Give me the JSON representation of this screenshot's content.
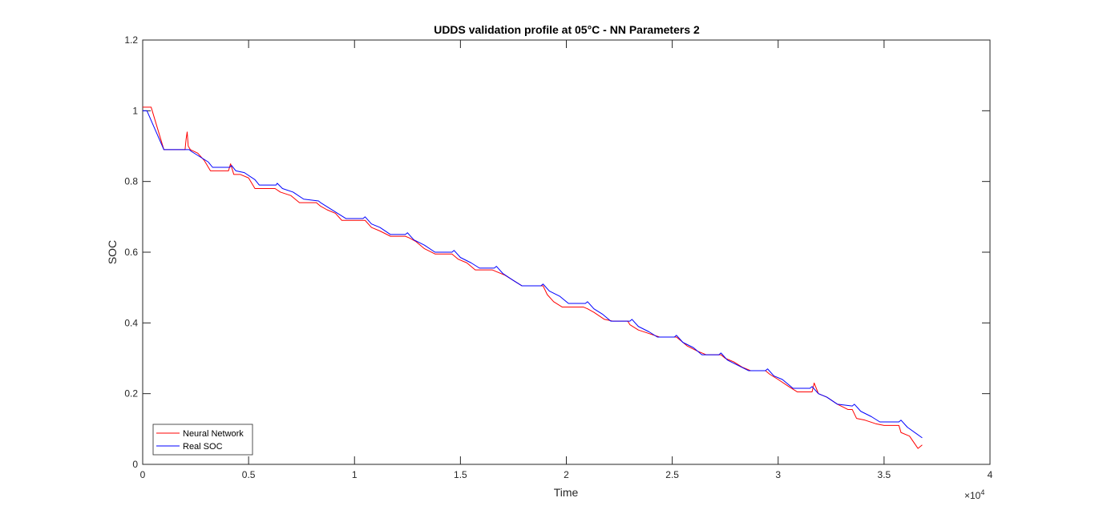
{
  "chart_data": {
    "type": "line",
    "title": "UDDS validation profile at 05°C - NN Parameters 2",
    "xlabel": "Time",
    "ylabel": "SOC",
    "x_exponent_base": "×10",
    "x_exponent_power": "4",
    "xlim": [
      0,
      40000
    ],
    "ylim": [
      0,
      1.2
    ],
    "xticks": [
      0,
      5000,
      10000,
      15000,
      20000,
      25000,
      30000,
      35000,
      40000
    ],
    "xtick_labels": [
      "0",
      "0.5",
      "1",
      "1.5",
      "2",
      "2.5",
      "3",
      "3.5",
      "4"
    ],
    "yticks": [
      0,
      0.2,
      0.4,
      0.6,
      0.8,
      1.0,
      1.2
    ],
    "ytick_labels": [
      "0",
      "0.2",
      "0.4",
      "0.6",
      "0.8",
      "1",
      "1.2"
    ],
    "grid": false,
    "legend_position": "bottom-left",
    "series": [
      {
        "name": "Neural Network",
        "color": "#ff0000",
        "points": [
          [
            0,
            1.01
          ],
          [
            400,
            1.01
          ],
          [
            1000,
            0.89
          ],
          [
            2000,
            0.89
          ],
          [
            2050,
            0.92
          ],
          [
            2100,
            0.94
          ],
          [
            2150,
            0.9
          ],
          [
            2250,
            0.89
          ],
          [
            2600,
            0.88
          ],
          [
            2900,
            0.86
          ],
          [
            3200,
            0.83
          ],
          [
            4050,
            0.83
          ],
          [
            4150,
            0.85
          ],
          [
            4300,
            0.82
          ],
          [
            4600,
            0.82
          ],
          [
            5000,
            0.81
          ],
          [
            5300,
            0.78
          ],
          [
            6100,
            0.78
          ],
          [
            6250,
            0.78
          ],
          [
            6500,
            0.77
          ],
          [
            7000,
            0.76
          ],
          [
            7400,
            0.74
          ],
          [
            8200,
            0.74
          ],
          [
            8400,
            0.73
          ],
          [
            8700,
            0.72
          ],
          [
            9100,
            0.71
          ],
          [
            9400,
            0.69
          ],
          [
            10300,
            0.69
          ],
          [
            10500,
            0.69
          ],
          [
            10800,
            0.67
          ],
          [
            11200,
            0.66
          ],
          [
            11700,
            0.645
          ],
          [
            12400,
            0.645
          ],
          [
            12600,
            0.64
          ],
          [
            12900,
            0.63
          ],
          [
            13300,
            0.61
          ],
          [
            13800,
            0.595
          ],
          [
            14600,
            0.595
          ],
          [
            14900,
            0.58
          ],
          [
            15300,
            0.57
          ],
          [
            15700,
            0.55
          ],
          [
            16500,
            0.55
          ],
          [
            16700,
            0.545
          ],
          [
            17100,
            0.535
          ],
          [
            17500,
            0.52
          ],
          [
            17900,
            0.505
          ],
          [
            18900,
            0.505
          ],
          [
            19100,
            0.48
          ],
          [
            19400,
            0.46
          ],
          [
            19800,
            0.445
          ],
          [
            20800,
            0.445
          ],
          [
            21000,
            0.44
          ],
          [
            21300,
            0.43
          ],
          [
            21800,
            0.41
          ],
          [
            22200,
            0.405
          ],
          [
            22900,
            0.405
          ],
          [
            23000,
            0.395
          ],
          [
            23400,
            0.38
          ],
          [
            23900,
            0.37
          ],
          [
            24400,
            0.36
          ],
          [
            25200,
            0.36
          ],
          [
            25400,
            0.35
          ],
          [
            25700,
            0.335
          ],
          [
            26200,
            0.32
          ],
          [
            26600,
            0.31
          ],
          [
            27300,
            0.31
          ],
          [
            27500,
            0.3
          ],
          [
            27900,
            0.29
          ],
          [
            28300,
            0.275
          ],
          [
            28700,
            0.265
          ],
          [
            29400,
            0.265
          ],
          [
            29600,
            0.255
          ],
          [
            30000,
            0.24
          ],
          [
            30500,
            0.22
          ],
          [
            30900,
            0.205
          ],
          [
            31600,
            0.205
          ],
          [
            31700,
            0.23
          ],
          [
            31900,
            0.2
          ],
          [
            32300,
            0.19
          ],
          [
            32800,
            0.17
          ],
          [
            33300,
            0.155
          ],
          [
            33500,
            0.155
          ],
          [
            33700,
            0.13
          ],
          [
            34100,
            0.125
          ],
          [
            34600,
            0.115
          ],
          [
            35000,
            0.11
          ],
          [
            35700,
            0.11
          ],
          [
            35800,
            0.09
          ],
          [
            36200,
            0.08
          ],
          [
            36600,
            0.045
          ],
          [
            36800,
            0.055
          ]
        ]
      },
      {
        "name": "Real SOC",
        "color": "#0000ff",
        "points": [
          [
            0,
            1.0
          ],
          [
            200,
            1.0
          ],
          [
            1000,
            0.89
          ],
          [
            2200,
            0.89
          ],
          [
            2300,
            0.885
          ],
          [
            2700,
            0.87
          ],
          [
            3100,
            0.855
          ],
          [
            3300,
            0.84
          ],
          [
            4100,
            0.84
          ],
          [
            4200,
            0.845
          ],
          [
            4400,
            0.83
          ],
          [
            4800,
            0.825
          ],
          [
            5300,
            0.805
          ],
          [
            5500,
            0.79
          ],
          [
            6300,
            0.79
          ],
          [
            6350,
            0.795
          ],
          [
            6600,
            0.78
          ],
          [
            7100,
            0.77
          ],
          [
            7600,
            0.75
          ],
          [
            8300,
            0.745
          ],
          [
            8400,
            0.74
          ],
          [
            8800,
            0.725
          ],
          [
            9200,
            0.71
          ],
          [
            9600,
            0.695
          ],
          [
            10400,
            0.695
          ],
          [
            10500,
            0.7
          ],
          [
            10800,
            0.68
          ],
          [
            11200,
            0.67
          ],
          [
            11700,
            0.65
          ],
          [
            12400,
            0.65
          ],
          [
            12500,
            0.655
          ],
          [
            12800,
            0.635
          ],
          [
            13300,
            0.62
          ],
          [
            13800,
            0.6
          ],
          [
            14600,
            0.6
          ],
          [
            14700,
            0.605
          ],
          [
            15000,
            0.585
          ],
          [
            15500,
            0.57
          ],
          [
            15900,
            0.555
          ],
          [
            16600,
            0.555
          ],
          [
            16700,
            0.56
          ],
          [
            17000,
            0.54
          ],
          [
            17500,
            0.52
          ],
          [
            17900,
            0.505
          ],
          [
            18800,
            0.505
          ],
          [
            18900,
            0.51
          ],
          [
            19200,
            0.49
          ],
          [
            19700,
            0.475
          ],
          [
            20100,
            0.455
          ],
          [
            20900,
            0.455
          ],
          [
            21000,
            0.46
          ],
          [
            21300,
            0.44
          ],
          [
            21700,
            0.425
          ],
          [
            22100,
            0.405
          ],
          [
            23000,
            0.405
          ],
          [
            23100,
            0.41
          ],
          [
            23400,
            0.39
          ],
          [
            23900,
            0.375
          ],
          [
            24300,
            0.36
          ],
          [
            25100,
            0.36
          ],
          [
            25200,
            0.365
          ],
          [
            25500,
            0.345
          ],
          [
            26000,
            0.33
          ],
          [
            26400,
            0.31
          ],
          [
            27200,
            0.31
          ],
          [
            27300,
            0.315
          ],
          [
            27600,
            0.295
          ],
          [
            28100,
            0.28
          ],
          [
            28600,
            0.265
          ],
          [
            29400,
            0.265
          ],
          [
            29500,
            0.27
          ],
          [
            29800,
            0.25
          ],
          [
            30200,
            0.24
          ],
          [
            30700,
            0.215
          ],
          [
            31500,
            0.215
          ],
          [
            31600,
            0.22
          ],
          [
            31900,
            0.2
          ],
          [
            32300,
            0.19
          ],
          [
            32800,
            0.17
          ],
          [
            33500,
            0.165
          ],
          [
            33600,
            0.17
          ],
          [
            33900,
            0.15
          ],
          [
            34400,
            0.135
          ],
          [
            34800,
            0.12
          ],
          [
            35700,
            0.12
          ],
          [
            35800,
            0.125
          ],
          [
            36100,
            0.105
          ],
          [
            36800,
            0.075
          ]
        ]
      }
    ]
  }
}
